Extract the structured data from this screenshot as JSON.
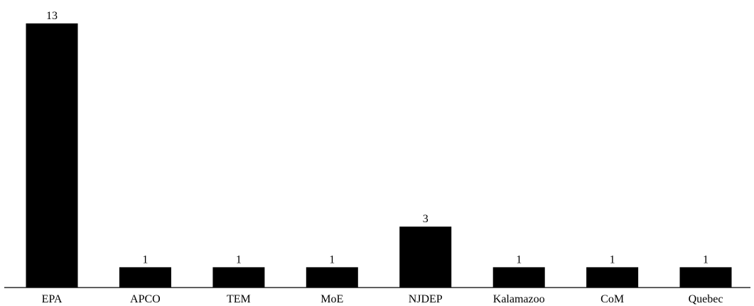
{
  "chart_data": {
    "type": "bar",
    "title": "",
    "xlabel": "",
    "ylabel": "",
    "categories": [
      "EPA",
      "APCO",
      "TEM",
      "MoE",
      "NJDEP",
      "Kalamazoo",
      "CoM",
      "Quebec"
    ],
    "values": [
      13,
      1,
      1,
      1,
      3,
      1,
      1,
      1
    ],
    "data_labels": [
      "13",
      "1",
      "1",
      "1",
      "3",
      "1",
      "1",
      "1"
    ],
    "bar_color": "#000000",
    "ylim": [
      0,
      13
    ],
    "grid": false,
    "legend": "none",
    "y_axis_visible": false
  }
}
